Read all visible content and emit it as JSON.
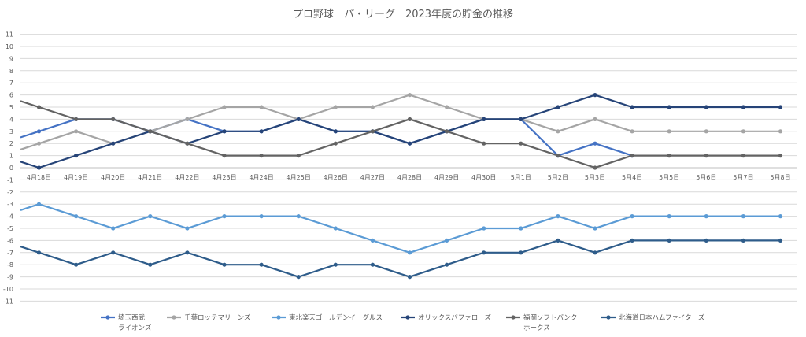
{
  "chart_data": {
    "type": "line",
    "title": "プロ野球　パ・リーグ　2023年度の貯金の推移",
    "xlabel": "",
    "ylabel": "",
    "ylim": [
      -11,
      11
    ],
    "yticks": [
      11,
      10,
      9,
      8,
      7,
      6,
      5,
      4,
      3,
      2,
      1,
      0,
      -1,
      -2,
      -3,
      -4,
      -5,
      -6,
      -7,
      -8,
      -9,
      -10,
      -11
    ],
    "grid": "horizontal",
    "legend_position": "bottom",
    "categories": [
      "4月18日",
      "4月19日",
      "4月20日",
      "4月21日",
      "4月22日",
      "4月23日",
      "4月24日",
      "4月25日",
      "4月26日",
      "4月27日",
      "4月28日",
      "4月29日",
      "4月30日",
      "5月1日",
      "5月2日",
      "5月3日",
      "5月4日",
      "5月5日",
      "5月6日",
      "5月7日",
      "5月8日"
    ],
    "start_value_label": "",
    "series": [
      {
        "name": "埼玉西武ライオンズ",
        "legend_lines": [
          "埼玉西武",
          "ライオンズ"
        ],
        "color": "#4472c4",
        "start": 2.5,
        "values": [
          3,
          4,
          4,
          3,
          4,
          3,
          3,
          4,
          3,
          3,
          2,
          3,
          4,
          4,
          1,
          2,
          1,
          null,
          null,
          null,
          null
        ]
      },
      {
        "name": "千葉ロッテマリーンズ",
        "legend_lines": [
          "千葉ロッテマリーンズ"
        ],
        "color": "#a5a5a5",
        "start": 1.5,
        "values": [
          2,
          3,
          2,
          3,
          4,
          5,
          5,
          4,
          5,
          5,
          6,
          5,
          4,
          4,
          3,
          4,
          3,
          3,
          3,
          3,
          3
        ]
      },
      {
        "name": "東北楽天ゴールデンイーグルス",
        "legend_lines": [
          "東北楽天ゴールデンイーグルス"
        ],
        "color": "#5b9bd5",
        "start": -3.5,
        "values": [
          -3,
          -4,
          -5,
          -4,
          -5,
          -4,
          -4,
          -4,
          -5,
          -6,
          -7,
          -6,
          -5,
          -5,
          -4,
          -5,
          -4,
          -4,
          -4,
          -4,
          -4
        ]
      },
      {
        "name": "オリックスバファローズ",
        "legend_lines": [
          "オリックスバファローズ"
        ],
        "color": "#264478",
        "start": 0.5,
        "values": [
          0,
          1,
          2,
          3,
          2,
          3,
          3,
          4,
          3,
          3,
          2,
          3,
          4,
          4,
          5,
          6,
          5,
          5,
          5,
          5,
          5
        ]
      },
      {
        "name": "福岡ソフトバンクホークス",
        "legend_lines": [
          "福岡ソフトバンク",
          "ホークス"
        ],
        "color": "#636363",
        "start": 5.5,
        "values": [
          5,
          4,
          4,
          3,
          2,
          1,
          1,
          1,
          2,
          3,
          4,
          3,
          2,
          2,
          1,
          0,
          1,
          1,
          1,
          1,
          1
        ]
      },
      {
        "name": "北海道日本ハムファイターズ",
        "legend_lines": [
          "北海道日本ハムファイターズ"
        ],
        "color": "#2e5c8a",
        "start": -6.5,
        "values": [
          -7,
          -8,
          -7,
          -8,
          -7,
          -8,
          -8,
          -9,
          -8,
          -8,
          -9,
          -8,
          -7,
          -7,
          -6,
          -7,
          -6,
          -6,
          -6,
          -6,
          -6
        ]
      }
    ]
  }
}
